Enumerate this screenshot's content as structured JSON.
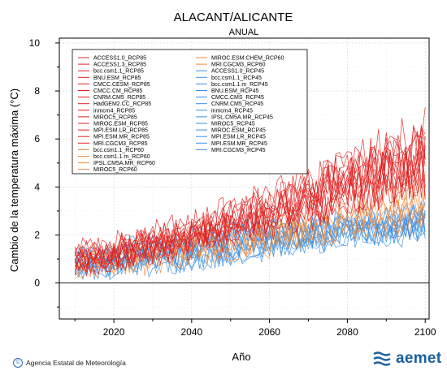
{
  "chart_data": {
    "type": "line",
    "title": "ALACANT/ALICANTE",
    "subtitle": "ANUAL",
    "xlabel": "Año",
    "ylabel": "Cambio de la temperatura máxima (°C)",
    "xlim": [
      2006,
      2101
    ],
    "ylim": [
      -1.5,
      10.2
    ],
    "x_ticks": [
      2020,
      2040,
      2060,
      2080,
      2100
    ],
    "y_ticks": [
      0,
      2,
      4,
      6,
      8,
      10
    ],
    "grid": true,
    "legend_position": "top-left",
    "reference_line": 0,
    "scenario_colors": {
      "RCP85": "#e02020",
      "RCP60": "#f08a3c",
      "RCP45": "#3a8ee0"
    },
    "scenario_ranges": {
      "RCP85": {
        "2010": [
          0.3,
          1.6
        ],
        "2040": [
          1.2,
          2.8
        ],
        "2060": [
          2.0,
          4.0
        ],
        "2080": [
          3.0,
          5.5
        ],
        "2100": [
          3.8,
          6.8
        ]
      },
      "RCP60": {
        "2010": [
          0.2,
          1.4
        ],
        "2040": [
          0.6,
          2.2
        ],
        "2060": [
          1.2,
          2.8
        ],
        "2080": [
          1.8,
          3.6
        ],
        "2100": [
          2.2,
          4.4
        ]
      },
      "RCP45": {
        "2010": [
          0.2,
          1.4
        ],
        "2040": [
          0.6,
          2.2
        ],
        "2060": [
          1.1,
          2.7
        ],
        "2080": [
          1.5,
          3.0
        ],
        "2100": [
          1.8,
          3.4
        ]
      }
    },
    "series": [
      {
        "name": "ACCESS1.0_RCP85",
        "scenario": "RCP85"
      },
      {
        "name": "ACCESS1.3_RCP85",
        "scenario": "RCP85"
      },
      {
        "name": "bcc.csm1.1_RCP85",
        "scenario": "RCP85"
      },
      {
        "name": "BNU.ESM_RCP85",
        "scenario": "RCP85"
      },
      {
        "name": "CMCC.CESM_RCP85",
        "scenario": "RCP85"
      },
      {
        "name": "CMCC.CM_RCP85",
        "scenario": "RCP85"
      },
      {
        "name": "CNRM.CM5_RCP85",
        "scenario": "RCP85"
      },
      {
        "name": "HadGEM2.CC_RCP85",
        "scenario": "RCP85"
      },
      {
        "name": "inmcm4_RCP85",
        "scenario": "RCP85"
      },
      {
        "name": "MIROC5_RCP85",
        "scenario": "RCP85"
      },
      {
        "name": "MIROC.ESM_RCP85",
        "scenario": "RCP85"
      },
      {
        "name": "MPI.ESM.LR_RCP85",
        "scenario": "RCP85"
      },
      {
        "name": "MPI.ESM.MR_RCP85",
        "scenario": "RCP85"
      },
      {
        "name": "MRI.CGCM3_RCP85",
        "scenario": "RCP85"
      },
      {
        "name": "bcc.csm1.1_RCP60",
        "scenario": "RCP60"
      },
      {
        "name": "bcc.csm1.1.m_RCP60",
        "scenario": "RCP60"
      },
      {
        "name": "IPSL.CM5A.MR_RCP60",
        "scenario": "RCP60"
      },
      {
        "name": "MIROC5_RCP60",
        "scenario": "RCP60"
      },
      {
        "name": "MIROC.ESM.CHEM_RCP60",
        "scenario": "RCP60"
      },
      {
        "name": "MRI.CGCM3_RCP60",
        "scenario": "RCP60"
      },
      {
        "name": "ACCESS1.0_RCP45",
        "scenario": "RCP45"
      },
      {
        "name": "bcc.csm1.1_RCP45",
        "scenario": "RCP45"
      },
      {
        "name": "bcc.csm1.1.m_RCP45",
        "scenario": "RCP45"
      },
      {
        "name": "BNU.ESM_RCP45",
        "scenario": "RCP45"
      },
      {
        "name": "CMCC.CMS_RCP45",
        "scenario": "RCP45"
      },
      {
        "name": "CNRM.CM5_RCP45",
        "scenario": "RCP45"
      },
      {
        "name": "inmcm4_RCP45",
        "scenario": "RCP45"
      },
      {
        "name": "IPSL.CM5A.MR_RCP45",
        "scenario": "RCP45"
      },
      {
        "name": "MIROC5_RCP45",
        "scenario": "RCP45"
      },
      {
        "name": "MIROC.ESM_RCP45",
        "scenario": "RCP45"
      },
      {
        "name": "MPI.ESM.LR_RCP45",
        "scenario": "RCP45"
      },
      {
        "name": "MPI.ESM.MR_RCP45",
        "scenario": "RCP45"
      },
      {
        "name": "MRI.CGCM3_RCP45",
        "scenario": "RCP45"
      }
    ]
  },
  "footer": {
    "copyright_symbol": "©",
    "agency": "Agencia Estatal de Meteorología",
    "brand": "aemet",
    "brand_color": "#1b5f9e"
  }
}
